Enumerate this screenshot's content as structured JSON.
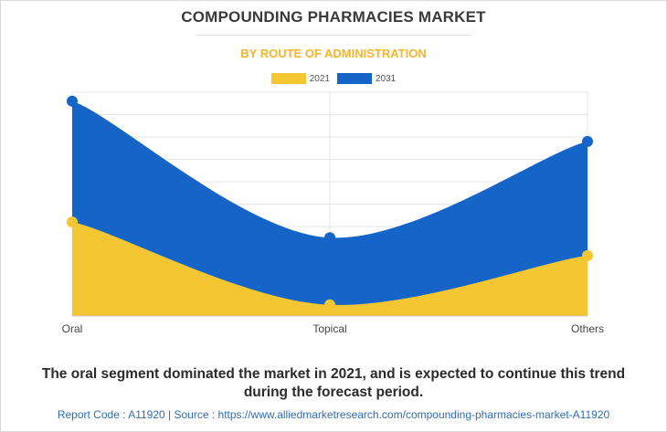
{
  "header": {
    "title": "COMPOUNDING PHARMACIES MARKET",
    "subtitle": "BY ROUTE OF ADMINISTRATION"
  },
  "colors": {
    "series_2021": "#f4c631",
    "series_2031": "#1565c8",
    "title": "#3a3a3a",
    "subtitle": "#f2b62c",
    "footer": "#2e6db4"
  },
  "chart_data": {
    "type": "area",
    "categories": [
      "Oral",
      "Topical",
      "Others"
    ],
    "series": [
      {
        "name": "2021",
        "values": [
          42,
          5,
          27
        ]
      },
      {
        "name": "2031",
        "values": [
          96,
          35,
          78
        ]
      }
    ],
    "ylim": [
      0,
      100
    ],
    "grid": true,
    "legend": "top-center"
  },
  "caption": "The oral segment dominated the market in 2021, and is expected to continue this trend during the forecast period.",
  "footer": {
    "report_code_label": "Report Code : ",
    "report_code": "A11920",
    "separator": " | ",
    "source_label": "Source : ",
    "source_url": "https://www.alliedmarketresearch.com/compounding-pharmacies-market-A11920"
  }
}
